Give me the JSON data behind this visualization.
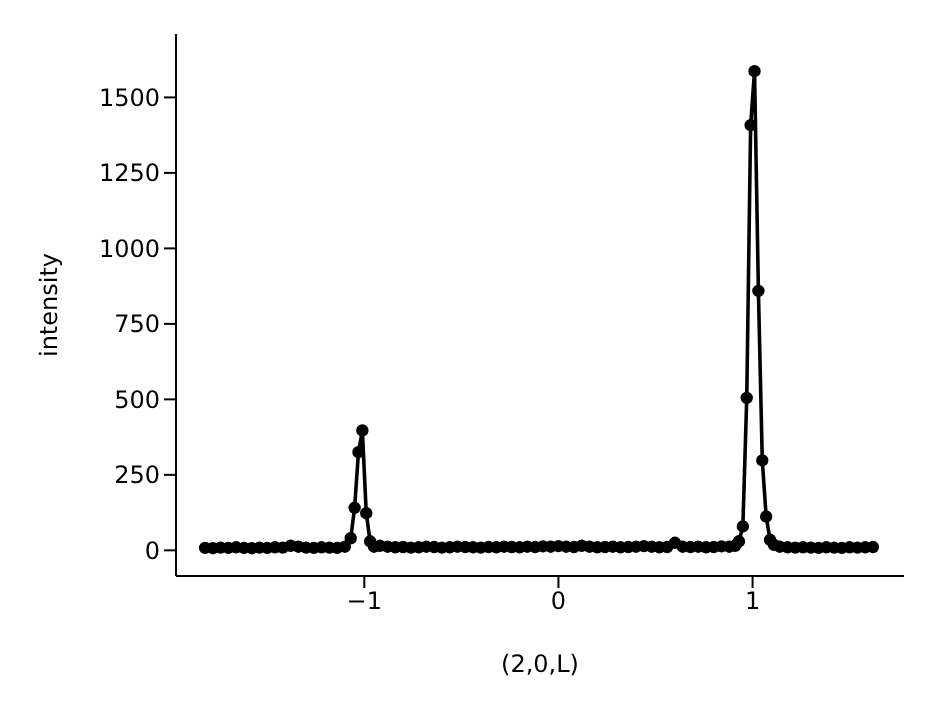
{
  "chart_data": {
    "type": "line",
    "xlabel": "(2,0,L)",
    "ylabel": "intensity",
    "xlim": [
      -1.97,
      1.78
    ],
    "ylim": [
      -85,
      1710
    ],
    "xticks": [
      {
        "value": -1,
        "label": "−1"
      },
      0,
      1
    ],
    "yticks": [
      0,
      250,
      500,
      750,
      1000,
      1250,
      1500
    ],
    "marker": "circle",
    "line_style": "solid",
    "series": [
      {
        "color": "#000000",
        "x": [
          -1.82,
          -1.78,
          -1.74,
          -1.7,
          -1.66,
          -1.62,
          -1.58,
          -1.54,
          -1.5,
          -1.46,
          -1.42,
          -1.38,
          -1.34,
          -1.3,
          -1.26,
          -1.22,
          -1.18,
          -1.14,
          -1.1,
          -1.07,
          -1.05,
          -1.03,
          -1.01,
          -0.99,
          -0.97,
          -0.95,
          -0.92,
          -0.88,
          -0.84,
          -0.8,
          -0.76,
          -0.72,
          -0.68,
          -0.64,
          -0.6,
          -0.56,
          -0.52,
          -0.48,
          -0.44,
          -0.4,
          -0.36,
          -0.32,
          -0.28,
          -0.24,
          -0.2,
          -0.16,
          -0.12,
          -0.08,
          -0.04,
          0,
          0.04,
          0.08,
          0.12,
          0.16,
          0.2,
          0.24,
          0.28,
          0.32,
          0.36,
          0.4,
          0.44,
          0.48,
          0.52,
          0.56,
          0.6,
          0.64,
          0.68,
          0.72,
          0.76,
          0.8,
          0.84,
          0.88,
          0.91,
          0.93,
          0.95,
          0.97,
          0.99,
          1.01,
          1.03,
          1.05,
          1.07,
          1.09,
          1.11,
          1.14,
          1.18,
          1.22,
          1.26,
          1.3,
          1.34,
          1.38,
          1.42,
          1.46,
          1.5,
          1.54,
          1.58,
          1.62
        ],
        "values": [
          8,
          7,
          9,
          8,
          10,
          8,
          7,
          9,
          8,
          10,
          9,
          15,
          12,
          9,
          8,
          10,
          9,
          8,
          12,
          40,
          141,
          325,
          397,
          123,
          30,
          12,
          15,
          12,
          10,
          11,
          9,
          10,
          12,
          11,
          9,
          10,
          12,
          11,
          10,
          9,
          11,
          10,
          12,
          11,
          10,
          12,
          11,
          13,
          12,
          14,
          12,
          11,
          15,
          12,
          10,
          11,
          12,
          10,
          11,
          12,
          14,
          12,
          10,
          11,
          25,
          12,
          11,
          12,
          10,
          11,
          13,
          12,
          15,
          30,
          79,
          505,
          1408,
          1587,
          859,
          298,
          112,
          35,
          18,
          12,
          10,
          9,
          10,
          9,
          8,
          10,
          9,
          8,
          10,
          9,
          10,
          11
        ]
      }
    ]
  }
}
